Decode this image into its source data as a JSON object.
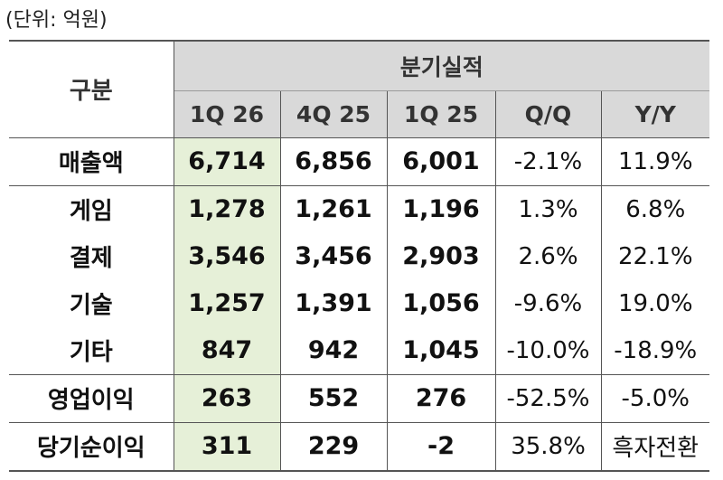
{
  "unit_label": "(단위: 억원)",
  "header": {
    "category": "구분",
    "group": "분기실적",
    "columns": [
      "1Q 26",
      "4Q 25",
      "1Q 25",
      "Q/Q",
      "Y/Y"
    ]
  },
  "rows": [
    {
      "label": "매출액",
      "values": [
        "6,714",
        "6,856",
        "6,001",
        "-2.1%",
        "11.9%"
      ]
    },
    {
      "label": "게임",
      "values": [
        "1,278",
        "1,261",
        "1,196",
        "1.3%",
        "6.8%"
      ]
    },
    {
      "label": "결제",
      "values": [
        "3,546",
        "3,456",
        "2,903",
        "2.6%",
        "22.1%"
      ]
    },
    {
      "label": "기술",
      "values": [
        "1,257",
        "1,391",
        "1,056",
        "-9.6%",
        "19.0%"
      ]
    },
    {
      "label": "기타",
      "values": [
        "847",
        "942",
        "1,045",
        "-10.0%",
        "-18.9%"
      ]
    },
    {
      "label": "영업이익",
      "values": [
        "263",
        "552",
        "276",
        "-52.5%",
        "-5.0%"
      ]
    },
    {
      "label": "당기순이익",
      "values": [
        "311",
        "229",
        "-2",
        "35.8%",
        "흑자전환"
      ]
    }
  ],
  "colors": {
    "header_bg": "#d9d9d9",
    "highlight_column_bg": "#e6f0d8",
    "border": "#555555"
  }
}
